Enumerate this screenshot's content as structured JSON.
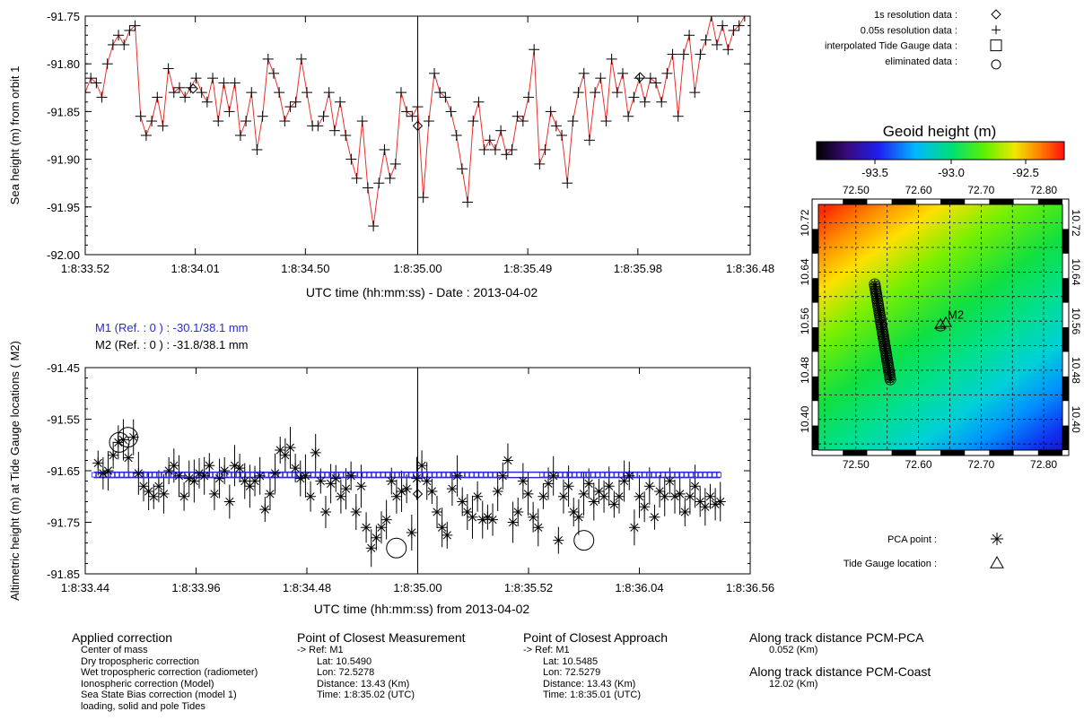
{
  "colors": {
    "trace": "#e8312f",
    "m1": "#2a2ad8",
    "m2": "#000000",
    "axis": "#000000"
  },
  "chart_data": [
    {
      "id": "top",
      "type": "line",
      "ylabel": "Sea height (m) from orbit 1",
      "xlabel": "UTC time (hh:mm:ss) - Date : 2013-04-02",
      "ylim": [
        -92.0,
        -91.75
      ],
      "yticks": [
        "-91.75",
        "-91.80",
        "-91.85",
        "-91.90",
        "-91.95",
        "-92.00"
      ],
      "xticks": [
        "1:8:33.52",
        "1:8:34.01",
        "1:8:34.50",
        "1:8:35.00",
        "1:8:35.49",
        "1:8:35.98",
        "1:8:36.48"
      ],
      "xlim_seconds": [
        33.52,
        36.48
      ],
      "reference_line_x": 35.0,
      "grid": false,
      "series": [
        {
          "name": "0.05s resolution data",
          "marker": "plus",
          "values": [
            -91.83,
            -91.815,
            -91.82,
            -91.835,
            -91.8,
            -91.78,
            -91.77,
            -91.78,
            -91.765,
            -91.76,
            -91.855,
            -91.875,
            -91.86,
            -91.835,
            -91.865,
            -91.805,
            -91.83,
            -91.825,
            -91.835,
            -91.825,
            -91.815,
            -91.83,
            -91.84,
            -91.815,
            -91.86,
            -91.82,
            -91.85,
            -91.82,
            -91.875,
            -91.86,
            -91.83,
            -91.89,
            -91.855,
            -91.795,
            -91.81,
            -91.83,
            -91.86,
            -91.845,
            -91.84,
            -91.795,
            -91.83,
            -91.865,
            -91.865,
            -91.855,
            -91.83,
            -91.87,
            -91.84,
            -91.875,
            -91.9,
            -91.92,
            -91.86,
            -91.93,
            -91.97,
            -91.925,
            -91.89,
            -91.92,
            -91.905,
            -91.83,
            -91.85,
            -91.855,
            -91.845,
            -91.94,
            -91.86,
            -91.81,
            -91.83,
            -91.835,
            -91.85,
            -91.875,
            -91.91,
            -91.945,
            -91.86,
            -91.84,
            -91.89,
            -91.88,
            -91.89,
            -91.87,
            -91.895,
            -91.89,
            -91.855,
            -91.86,
            -91.835,
            -91.785,
            -91.905,
            -91.89,
            -91.85,
            -91.865,
            -91.875,
            -91.925,
            -91.86,
            -91.83,
            -91.81,
            -91.88,
            -91.83,
            -91.815,
            -91.86,
            -91.795,
            -91.83,
            -91.81,
            -91.855,
            -91.835,
            -91.815,
            -91.84,
            -91.815,
            -91.82,
            -91.84,
            -91.81,
            -91.79,
            -91.855,
            -91.79,
            -91.77,
            -91.83,
            -91.79,
            -91.775,
            -91.75,
            -91.78,
            -91.76,
            -91.785,
            -91.765,
            -91.76,
            -91.75,
            -91.75
          ]
        },
        {
          "name": "1s resolution data",
          "marker": "diamond",
          "x": [
            34.0,
            35.0,
            35.99
          ],
          "values": [
            -91.826,
            -91.865,
            -91.814
          ]
        }
      ]
    },
    {
      "id": "bottom",
      "type": "scatter",
      "ylabel": "Altimetric height (m) at Tide Gauge locations ( M2)",
      "xlabel": "UTC time (hh:mm:ss) from 2013-04-02",
      "ylim": [
        -91.85,
        -91.45
      ],
      "yticks": [
        "-91.45",
        "-91.55",
        "-91.65",
        "-91.75",
        "-91.85"
      ],
      "xticks": [
        "1:8:33.44",
        "1:8:33.96",
        "1:8:34.48",
        "1:8:35.00",
        "1:8:35.52",
        "1:8:36.04",
        "1:8:36.56"
      ],
      "xlim_seconds": [
        33.44,
        36.56
      ],
      "reference_line_x": 35.0,
      "series": [
        {
          "name": "PCA point",
          "marker": "asterisk",
          "values": [
            -91.635,
            -91.655,
            -91.65,
            -91.62,
            -91.595,
            -91.59,
            -91.625,
            -91.585,
            -91.655,
            -91.68,
            -91.69,
            -91.7,
            -91.68,
            -91.695,
            -91.65,
            -91.64,
            -91.66,
            -91.7,
            -91.665,
            -91.67,
            -91.655,
            -91.66,
            -91.64,
            -91.695,
            -91.665,
            -91.65,
            -91.71,
            -91.64,
            -91.645,
            -91.67,
            -91.68,
            -91.67,
            -91.66,
            -91.725,
            -91.695,
            -91.655,
            -91.61,
            -91.62,
            -91.605,
            -91.645,
            -91.665,
            -91.66,
            -91.7,
            -91.615,
            -91.67,
            -91.73,
            -91.675,
            -91.665,
            -91.7,
            -91.685,
            -91.66,
            -91.73,
            -91.68,
            -91.76,
            -91.8,
            -91.78,
            -91.76,
            -91.745,
            -91.67,
            -91.7,
            -91.69,
            -91.685,
            -91.77,
            -91.665,
            -91.64,
            -91.67,
            -91.69,
            -91.73,
            -91.76,
            -91.775,
            -91.685,
            -91.66,
            -91.71,
            -91.73,
            -91.74,
            -91.7,
            -91.745,
            -91.74,
            -91.745,
            -91.69,
            -91.66,
            -91.63,
            -91.75,
            -91.73,
            -91.67,
            -91.695,
            -91.74,
            -91.76,
            -91.7,
            -91.675,
            -91.66,
            -91.785,
            -91.7,
            -91.68,
            -91.73,
            -91.74,
            -91.695,
            -91.675,
            -91.71,
            -91.69,
            -91.7,
            -91.68,
            -91.715,
            -91.7,
            -91.67,
            -91.66,
            -91.76,
            -91.7,
            -91.72,
            -91.68,
            -91.74,
            -91.69,
            -91.7,
            -91.67,
            -91.7,
            -91.695,
            -91.73,
            -91.7,
            -91.68,
            -91.71,
            -91.72,
            -91.7,
            -91.715,
            -91.71
          ]
        },
        {
          "name": "eliminated data",
          "marker": "circle",
          "x": [
            33.6,
            33.64,
            34.9,
            35.78
          ],
          "values": [
            -91.595,
            -91.585,
            -91.8,
            -91.785
          ]
        },
        {
          "name": "1s resolution data",
          "marker": "diamond",
          "x": [
            35.0
          ],
          "values": [
            -91.695
          ]
        },
        {
          "name": "M1 (Ref. : 0 ) : -30.1/38.1 mm",
          "marker": "square",
          "x_range": [
            33.44,
            36.56
          ],
          "values": [
            -91.658
          ]
        },
        {
          "name": "M2 (Ref. : 0 ) : -31.8/38.1 mm"
        }
      ]
    }
  ],
  "bottom_labels": {
    "m1": "M1 (Ref. : 0 ) : -30.1/38.1 mm",
    "m2": "M2 (Ref. : 0 ) : -31.8/38.1 mm"
  },
  "legend_top": [
    {
      "label": "1s resolution data :",
      "marker": "diamond"
    },
    {
      "label": "0.05s resolution data :",
      "marker": "plus"
    },
    {
      "label": "interpolated Tide Gauge data :",
      "marker": "square"
    },
    {
      "label": "eliminated data :",
      "marker": "circle"
    }
  ],
  "legend_bottom": [
    {
      "label": "PCA point :",
      "marker": "asterisk"
    },
    {
      "label": "Tide Gauge location :",
      "marker": "triangle"
    }
  ],
  "geoid": {
    "title": "Geoid height (m)",
    "colorbar_ticks": [
      "-93.5",
      "-93.0",
      "-92.5"
    ],
    "lon_ticks": [
      "72.50",
      "72.60",
      "72.70",
      "72.80"
    ],
    "lat_ticks": [
      "10.72",
      "10.64",
      "10.56",
      "10.48",
      "10.40"
    ],
    "station": "M2",
    "track": {
      "from": [
        72.53,
        10.62
      ],
      "to": [
        72.555,
        10.465
      ]
    },
    "station_pos": [
      72.635,
      10.555
    ]
  },
  "info": {
    "applied": {
      "title": "Applied correction",
      "items": [
        "Center of mass",
        "Dry tropospheric correction",
        "Wet tropospheric correction (radiometer)",
        "Ionospheric correction (Model)",
        "Sea State Bias correction (model 1)",
        "loading, solid and pole Tides"
      ]
    },
    "pcm": {
      "title": "Point of Closest Measurement",
      "ref": "-> Ref: M1",
      "lat": "Lat: 10.5490",
      "lon": "Lon: 72.5278",
      "dist": "Distance: 13.43 (Km)",
      "time": "Time: 1:8:35.02 (UTC)"
    },
    "pca": {
      "title": "Point of Closest Approach",
      "ref": "-> Ref: M1",
      "lat": "Lat: 10.5485",
      "lon": "Lon: 72.5279",
      "dist": "Distance: 13.43 (Km)",
      "time": "Time: 1:8:35.01 (UTC)"
    },
    "along1": {
      "title": "Along track distance PCM-PCA",
      "value": "0.052 (Km)"
    },
    "along2": {
      "title": "Along track distance PCM-Coast",
      "value": "12.02 (Km)"
    }
  }
}
